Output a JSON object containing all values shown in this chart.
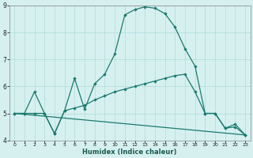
{
  "xlabel": "Humidex (Indice chaleur)",
  "bg_color": "#d6f0f0",
  "grid_color": "#b8dede",
  "line_color": "#1a7a6e",
  "xlim": [
    -0.5,
    23.5
  ],
  "ylim": [
    4,
    9
  ],
  "yticks": [
    4,
    5,
    6,
    7,
    8,
    9
  ],
  "xticks": [
    0,
    1,
    2,
    3,
    4,
    5,
    6,
    7,
    8,
    9,
    10,
    11,
    12,
    13,
    14,
    15,
    16,
    17,
    18,
    19,
    20,
    21,
    22,
    23
  ],
  "line1_x": [
    0,
    1,
    2,
    3,
    4,
    5,
    6,
    7,
    8,
    9,
    10,
    11,
    12,
    13,
    14,
    15,
    16,
    17,
    18,
    19,
    20,
    21,
    22,
    23
  ],
  "line1_y": [
    5.0,
    5.0,
    5.8,
    5.0,
    4.25,
    5.1,
    5.2,
    5.3,
    5.5,
    5.65,
    5.8,
    5.9,
    6.0,
    6.1,
    6.2,
    6.3,
    6.4,
    6.45,
    5.8,
    5.0,
    5.0,
    4.45,
    4.5,
    4.2
  ],
  "line2_x": [
    0,
    1,
    2,
    3,
    4,
    5,
    6,
    7,
    8,
    9,
    10,
    11,
    12,
    13,
    14,
    15,
    16,
    17,
    18,
    19,
    20,
    21,
    22,
    23
  ],
  "line2_y": [
    5.0,
    5.0,
    5.0,
    5.0,
    4.25,
    5.1,
    6.3,
    5.15,
    6.1,
    6.45,
    7.2,
    8.65,
    8.85,
    8.95,
    8.9,
    8.7,
    8.2,
    7.4,
    6.75,
    5.0,
    5.0,
    4.45,
    4.6,
    4.2
  ],
  "line3_x": [
    0,
    23
  ],
  "line3_y": [
    5.0,
    4.2
  ]
}
